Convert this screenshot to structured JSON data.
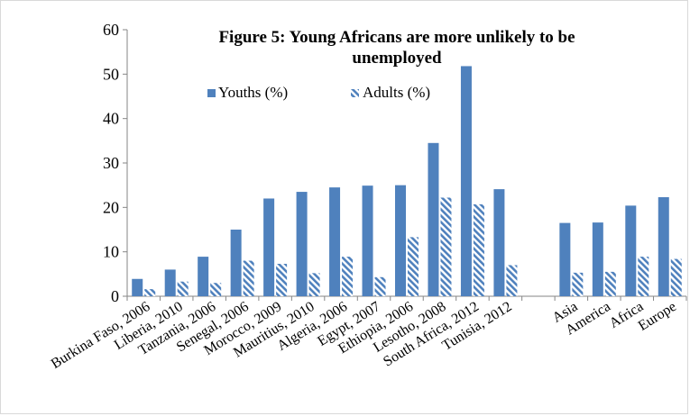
{
  "chart_data": {
    "type": "bar",
    "title_line1": "Figure 5: Young Africans are more unlikely to be",
    "title_line2": "unemployed",
    "categories": [
      "Burkina Faso, 2006",
      "Liberia, 2010",
      "Tanzania, 2006",
      "Senegal, 2006",
      "Morocco, 2009",
      "Mauritius, 2010",
      "Algeria, 2006",
      "Egypt, 2007",
      "Ethiopia, 2006",
      "Lesotho, 2008",
      "South Africa, 2012",
      "Tunisia, 2012",
      "",
      "Asia",
      "America",
      "Africa",
      "Europe"
    ],
    "series": [
      {
        "name": "Youths (%)",
        "color": "#4f81bd",
        "pattern": "solid",
        "values": [
          3.9,
          6.0,
          8.9,
          15.0,
          22.0,
          23.5,
          24.5,
          24.9,
          25.0,
          34.5,
          51.8,
          24.1,
          null,
          16.5,
          16.6,
          20.4,
          22.3
        ]
      },
      {
        "name": "Adults (%)",
        "color": "#4f81bd",
        "pattern": "hatched",
        "values": [
          1.6,
          3.3,
          3.0,
          8.0,
          7.3,
          5.2,
          8.9,
          4.3,
          13.3,
          22.2,
          20.7,
          7.0,
          null,
          5.3,
          5.5,
          8.9,
          8.4
        ]
      }
    ],
    "ylim": [
      0,
      60
    ],
    "yticks": [
      0,
      10,
      20,
      30,
      40,
      50,
      60
    ],
    "grid": false,
    "legend_position": "top-left"
  }
}
